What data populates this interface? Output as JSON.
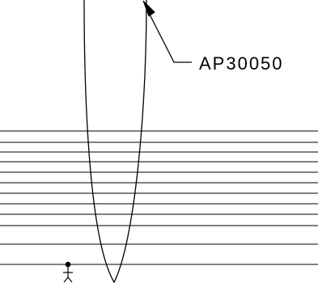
{
  "callout": {
    "label": "AP30050"
  },
  "horizontal_lines": {
    "count": 11
  },
  "colors": {
    "line": "#000000",
    "background": "#ffffff"
  }
}
